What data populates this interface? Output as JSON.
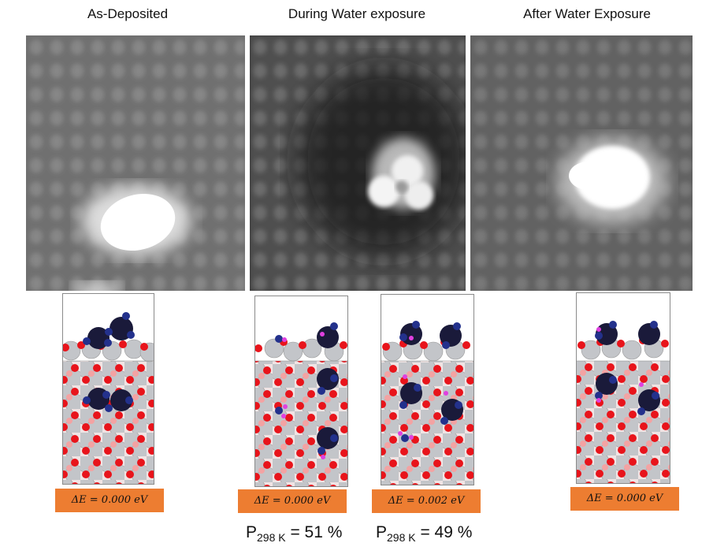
{
  "panels": [
    {
      "title": "As-Deposited"
    },
    {
      "title": "During Water exposure"
    },
    {
      "title": "After Water Exposure"
    }
  ],
  "energies": [
    {
      "value": "ΔE = 0.000 eV"
    },
    {
      "value": "ΔE = 0.000 eV"
    },
    {
      "value": "ΔE = 0.002  eV"
    },
    {
      "value": "ΔE = 0.000 eV"
    }
  ],
  "probabilities": [
    {
      "prefix": "P",
      "subscript": "298 K",
      "value": " = 51 %"
    },
    {
      "prefix": "P",
      "subscript": "298 K",
      "value": " = 49 %"
    }
  ],
  "colors": {
    "energy_box": "#ED7D31",
    "oxygen": "#E8141B",
    "cation": "#C3C5C9",
    "adatom_dark": "#1A1A3A",
    "adatom_blue": "#23318C",
    "hydrogen": "#E040E0"
  }
}
